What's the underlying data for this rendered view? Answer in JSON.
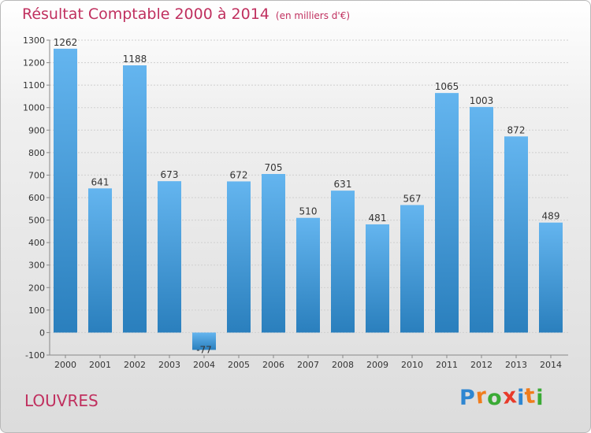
{
  "title": "Résultat Comptable 2000 à 2014",
  "subtitle": "(en milliers d'€)",
  "commune": "LOUVRES",
  "logo": {
    "text": "Proxiti",
    "letter_colors": [
      "#2e86d1",
      "#f07c1c",
      "#3aaa35",
      "#e83a2a",
      "#2e86d1",
      "#f07c1c",
      "#3aaa35"
    ]
  },
  "colors": {
    "title": "#c0305f",
    "bar_light": "#64b5ef",
    "bar_dark": "#2a7fbd",
    "grid": "#cfcfcf",
    "axis_text": "#333333"
  },
  "chart_data": {
    "type": "bar",
    "categories": [
      "2000",
      "2001",
      "2002",
      "2003",
      "2004",
      "2005",
      "2006",
      "2007",
      "2008",
      "2009",
      "2010",
      "2011",
      "2012",
      "2013",
      "2014"
    ],
    "values": [
      1262,
      641,
      1188,
      673,
      -77,
      672,
      705,
      510,
      631,
      481,
      567,
      1065,
      1003,
      872,
      489
    ],
    "data_labels": [
      "1262",
      "641",
      "1188",
      "673",
      "-77",
      "672",
      "705",
      "510",
      "631",
      "481",
      "567",
      "1065",
      "1003",
      "872",
      "489"
    ],
    "ylim": [
      -100,
      1300
    ],
    "yticks": [
      -100,
      0,
      100,
      200,
      300,
      400,
      500,
      600,
      700,
      800,
      900,
      1000,
      1100,
      1200,
      1300
    ],
    "grid": true
  }
}
